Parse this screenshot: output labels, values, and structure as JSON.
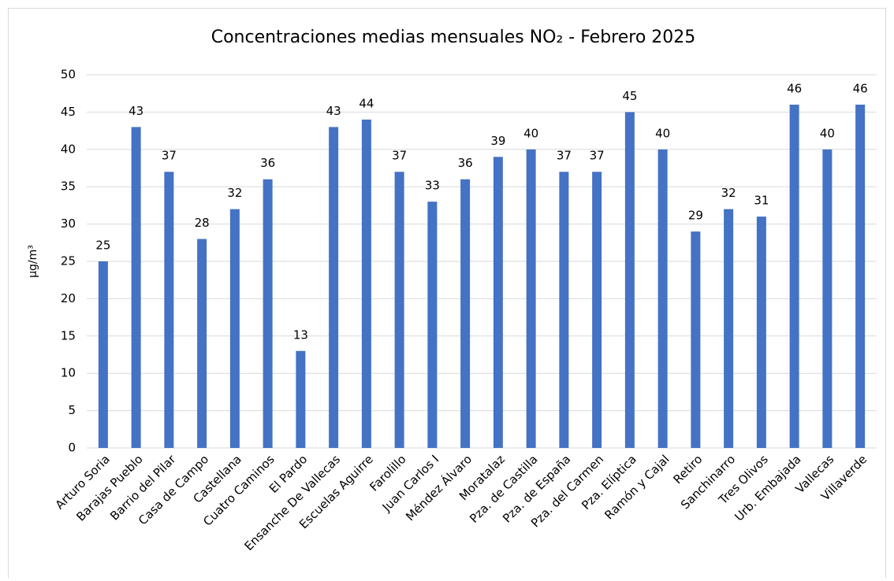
{
  "chart_data": {
    "type": "bar",
    "title": "Concentraciones medias mensuales NO₂ - Febrero 2025",
    "y_label": "µg/m³",
    "categories": [
      "Arturo Soria",
      "Barajas Pueblo",
      "Barrio del Pilar",
      "Casa de Campo",
      "Castellana",
      "Cuatro Caminos",
      "El Pardo",
      "Ensanche De Vallecas",
      "Escuelas Aguirre",
      "Farolillo",
      "Juan Carlos I",
      "Méndez Álvaro",
      "Moratalaz",
      "Pza. de Castilla",
      "Pza. de España",
      "Pza. del Carmen",
      "Pza. Elíptica",
      "Ramón y Cajal",
      "Retiro",
      "Sanchinarro",
      "Tres Olivos",
      "Urb. Embajada",
      "Vallecas",
      "Villaverde"
    ],
    "values": [
      25,
      43,
      37,
      28,
      32,
      36,
      13,
      43,
      44,
      37,
      33,
      36,
      39,
      40,
      37,
      37,
      45,
      40,
      29,
      32,
      31,
      46,
      40,
      46
    ],
    "color": "#4472c4",
    "ylim": [
      0,
      50
    ],
    "yticks": [
      0,
      5,
      10,
      15,
      20,
      25,
      30,
      35,
      40,
      45,
      50
    ],
    "grid": true
  }
}
